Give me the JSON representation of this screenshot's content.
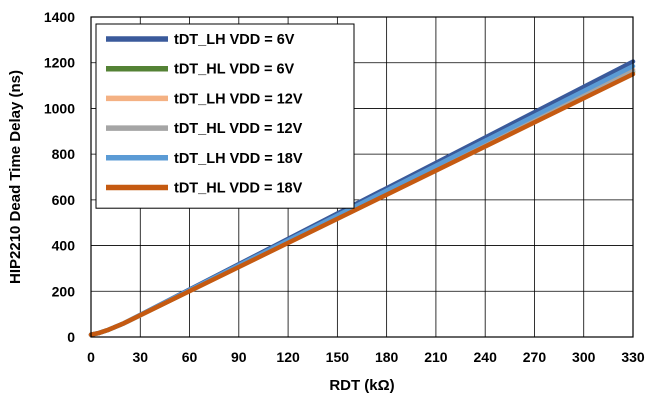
{
  "chart_data": {
    "type": "line",
    "title": "",
    "xlabel": "RDT (kΩ)",
    "ylabel": "HIP2210 Dead Time Delay (ns)",
    "xlim": [
      0,
      330
    ],
    "ylim": [
      0,
      1400
    ],
    "xticks": [
      0,
      30,
      60,
      90,
      120,
      150,
      180,
      210,
      240,
      270,
      300,
      330
    ],
    "yticks": [
      0,
      200,
      400,
      600,
      800,
      1000,
      1200,
      1400
    ],
    "grid": true,
    "legend_position": "top-left",
    "series": [
      {
        "name": "tDT_LH VDD = 6V",
        "color": "#3a5a9b",
        "x": [
          0,
          5,
          10,
          20,
          330
        ],
        "y": [
          10,
          18,
          30,
          60,
          1205
        ]
      },
      {
        "name": "tDT_HL VDD = 6V",
        "color": "#548235",
        "x": [
          0,
          5,
          10,
          20,
          330
        ],
        "y": [
          10,
          18,
          30,
          60,
          1160
        ]
      },
      {
        "name": "tDT_LH VDD = 12V",
        "color": "#f4b183",
        "x": [
          0,
          5,
          10,
          20,
          330
        ],
        "y": [
          10,
          18,
          30,
          60,
          1170
        ]
      },
      {
        "name": "tDT_HL VDD = 12V",
        "color": "#a5a5a5",
        "x": [
          0,
          5,
          10,
          20,
          330
        ],
        "y": [
          10,
          18,
          30,
          60,
          1165
        ]
      },
      {
        "name": "tDT_LH VDD = 18V",
        "color": "#5b9bd5",
        "x": [
          0,
          5,
          10,
          20,
          330
        ],
        "y": [
          10,
          18,
          30,
          60,
          1185
        ]
      },
      {
        "name": "tDT_HL VDD = 18V",
        "color": "#c55a11",
        "x": [
          0,
          5,
          10,
          20,
          330
        ],
        "y": [
          10,
          18,
          30,
          60,
          1150
        ]
      }
    ]
  }
}
